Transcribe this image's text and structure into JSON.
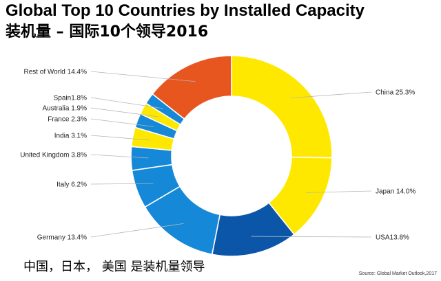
{
  "title": "Global Top 10 Countries by Installed Capacity",
  "subtitle": "装机量 – 国际10个领导2016",
  "note": "中国，日本， 美国 是装机量领导",
  "source": "Source: Global Market Outlook,2017",
  "chart_data": {
    "type": "pie",
    "donut": true,
    "direction": "clockwise",
    "start": "top",
    "slices": [
      {
        "name": "China",
        "value": 25.3,
        "label": "China 25.3%",
        "color": "#ffe800"
      },
      {
        "name": "Japan",
        "value": 14.0,
        "label": "Japan 14.0%",
        "color": "#ffe800"
      },
      {
        "name": "USA",
        "value": 13.8,
        "label": "USA13.8%",
        "color": "#0b56a8"
      },
      {
        "name": "Germany",
        "value": 13.4,
        "label": "Germany 13.4%",
        "color": "#1688d8"
      },
      {
        "name": "Italy",
        "value": 6.2,
        "label": "Italy 6.2%",
        "color": "#1688d8"
      },
      {
        "name": "United Kingdom",
        "value": 3.8,
        "label": "United Kingdom 3.8%",
        "color": "#1688d8"
      },
      {
        "name": "India",
        "value": 3.1,
        "label": "India 3.1%",
        "color": "#ffe800"
      },
      {
        "name": "France",
        "value": 2.3,
        "label": "France 2.3%",
        "color": "#1688d8"
      },
      {
        "name": "Australia",
        "value": 1.9,
        "label": "Australia 1.9%",
        "color": "#ffe800"
      },
      {
        "name": "Spain",
        "value": 1.8,
        "label": "Spain1.8%",
        "color": "#1688d8"
      },
      {
        "name": "Rest of World",
        "value": 14.4,
        "label": "Rest of World 14.4%",
        "color": "#e8561f"
      }
    ]
  }
}
